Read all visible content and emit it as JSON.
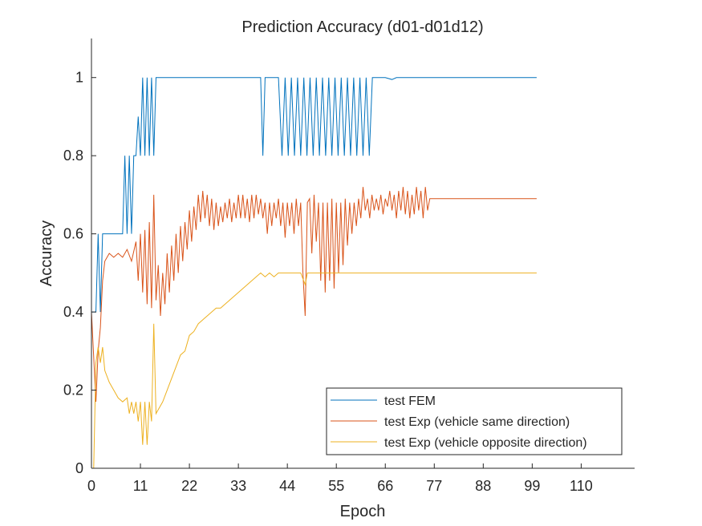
{
  "chart_data": {
    "type": "line",
    "title": "Prediction Accuracy (d01-d01d12)",
    "xlabel": "Epoch",
    "ylabel": "Accuracy",
    "xlim": [
      0,
      122
    ],
    "ylim": [
      0,
      1.1
    ],
    "xticks": [
      0,
      11,
      22,
      33,
      44,
      55,
      66,
      77,
      88,
      99,
      110
    ],
    "xtick_labels": [
      "0",
      "11",
      "22",
      "33",
      "44",
      "55",
      "66",
      "77",
      "88",
      "99",
      "110"
    ],
    "yticks": [
      0,
      0.2,
      0.4,
      0.6,
      0.8,
      1
    ],
    "ytick_labels": [
      "0",
      "0.2",
      "0.4",
      "0.6",
      "0.8",
      "1"
    ],
    "grid": false,
    "legend_position": "bottom-right",
    "series": [
      {
        "name": "test FEM",
        "color": "#0072BD",
        "points": [
          [
            0,
            0.4
          ],
          [
            1,
            0.4
          ],
          [
            1.5,
            0.6
          ],
          [
            2,
            0.4
          ],
          [
            2.5,
            0.6
          ],
          [
            3,
            0.6
          ],
          [
            4,
            0.6
          ],
          [
            5,
            0.6
          ],
          [
            6,
            0.6
          ],
          [
            7,
            0.6
          ],
          [
            7.5,
            0.8
          ],
          [
            8,
            0.6
          ],
          [
            8.5,
            0.8
          ],
          [
            9,
            0.6
          ],
          [
            9.5,
            0.8
          ],
          [
            10,
            0.8
          ],
          [
            10.5,
            0.9
          ],
          [
            11,
            0.8
          ],
          [
            11.5,
            1
          ],
          [
            12,
            0.8
          ],
          [
            12.5,
            1
          ],
          [
            13,
            0.8
          ],
          [
            13.5,
            1
          ],
          [
            14,
            0.8
          ],
          [
            14.5,
            1
          ],
          [
            15,
            1
          ],
          [
            20,
            1
          ],
          [
            30,
            1
          ],
          [
            38,
            1
          ],
          [
            38.5,
            0.8
          ],
          [
            39,
            1
          ],
          [
            42,
            1
          ],
          [
            42.8,
            0.8
          ],
          [
            43.5,
            1
          ],
          [
            44.2,
            0.8
          ],
          [
            44.9,
            1
          ],
          [
            45.6,
            0.8
          ],
          [
            46.3,
            1
          ],
          [
            47,
            0.8
          ],
          [
            47.7,
            1
          ],
          [
            48.4,
            0.8
          ],
          [
            49.1,
            1
          ],
          [
            49.8,
            0.8
          ],
          [
            50.5,
            1
          ],
          [
            51.2,
            0.8
          ],
          [
            51.9,
            1
          ],
          [
            52.6,
            0.8
          ],
          [
            53.3,
            1
          ],
          [
            54,
            0.8
          ],
          [
            54.7,
            1
          ],
          [
            55.4,
            0.8
          ],
          [
            56.1,
            1
          ],
          [
            56.8,
            0.8
          ],
          [
            57.5,
            1
          ],
          [
            58.2,
            0.8
          ],
          [
            58.9,
            1
          ],
          [
            59.6,
            0.8
          ],
          [
            60.3,
            1
          ],
          [
            61,
            0.8
          ],
          [
            61.7,
            1
          ],
          [
            62.4,
            0.8
          ],
          [
            63.1,
            1
          ],
          [
            66,
            1
          ],
          [
            67.5,
            0.995
          ],
          [
            68.5,
            1
          ],
          [
            80,
            1
          ],
          [
            100,
            1
          ]
        ]
      },
      {
        "name": "test Exp (vehicle same direction)",
        "color": "#D95319",
        "points": [
          [
            0,
            0.4
          ],
          [
            1,
            0.17
          ],
          [
            1.5,
            0.3
          ],
          [
            2,
            0.36
          ],
          [
            2.5,
            0.48
          ],
          [
            3,
            0.53
          ],
          [
            4,
            0.55
          ],
          [
            5,
            0.54
          ],
          [
            6,
            0.55
          ],
          [
            7,
            0.54
          ],
          [
            8,
            0.56
          ],
          [
            9,
            0.53
          ],
          [
            10,
            0.58
          ],
          [
            10.5,
            0.48
          ],
          [
            11,
            0.6
          ],
          [
            11.5,
            0.45
          ],
          [
            12,
            0.61
          ],
          [
            12.5,
            0.42
          ],
          [
            13,
            0.63
          ],
          [
            13.5,
            0.41
          ],
          [
            14,
            0.7
          ],
          [
            14.5,
            0.43
          ],
          [
            15,
            0.52
          ],
          [
            15.5,
            0.39
          ],
          [
            16,
            0.5
          ],
          [
            16.5,
            0.42
          ],
          [
            17,
            0.55
          ],
          [
            17.5,
            0.45
          ],
          [
            18,
            0.57
          ],
          [
            18.5,
            0.48
          ],
          [
            19,
            0.6
          ],
          [
            19.5,
            0.5
          ],
          [
            20,
            0.62
          ],
          [
            20.5,
            0.53
          ],
          [
            21,
            0.63
          ],
          [
            21.5,
            0.56
          ],
          [
            22,
            0.66
          ],
          [
            22.5,
            0.58
          ],
          [
            23,
            0.67
          ],
          [
            23.5,
            0.61
          ],
          [
            24,
            0.7
          ],
          [
            24.5,
            0.63
          ],
          [
            25,
            0.71
          ],
          [
            25.5,
            0.64
          ],
          [
            26,
            0.7
          ],
          [
            26.5,
            0.62
          ],
          [
            27,
            0.69
          ],
          [
            27.5,
            0.61
          ],
          [
            28,
            0.68
          ],
          [
            28.5,
            0.62
          ],
          [
            29,
            0.67
          ],
          [
            29.5,
            0.63
          ],
          [
            30,
            0.68
          ],
          [
            30.5,
            0.64
          ],
          [
            31,
            0.69
          ],
          [
            31.5,
            0.63
          ],
          [
            32,
            0.68
          ],
          [
            32.5,
            0.64
          ],
          [
            33,
            0.7
          ],
          [
            33.5,
            0.64
          ],
          [
            34,
            0.7
          ],
          [
            34.5,
            0.64
          ],
          [
            35,
            0.69
          ],
          [
            35.5,
            0.63
          ],
          [
            36,
            0.7
          ],
          [
            36.5,
            0.64
          ],
          [
            37,
            0.7
          ],
          [
            37.5,
            0.65
          ],
          [
            38,
            0.69
          ],
          [
            38.5,
            0.64
          ],
          [
            39,
            0.68
          ],
          [
            39.5,
            0.6
          ],
          [
            40,
            0.68
          ],
          [
            40.5,
            0.62
          ],
          [
            41,
            0.68
          ],
          [
            41.5,
            0.64
          ],
          [
            42,
            0.69
          ],
          [
            42.5,
            0.62
          ],
          [
            43,
            0.68
          ],
          [
            43.5,
            0.59
          ],
          [
            44,
            0.68
          ],
          [
            44.5,
            0.62
          ],
          [
            45,
            0.68
          ],
          [
            45.5,
            0.6
          ],
          [
            46,
            0.69
          ],
          [
            46.5,
            0.62
          ],
          [
            47,
            0.68
          ],
          [
            47.5,
            0.5
          ],
          [
            48,
            0.39
          ],
          [
            48.5,
            0.68
          ],
          [
            49,
            0.69
          ],
          [
            49.5,
            0.55
          ],
          [
            50,
            0.7
          ],
          [
            50.5,
            0.58
          ],
          [
            51,
            0.68
          ],
          [
            51.5,
            0.48
          ],
          [
            52,
            0.68
          ],
          [
            52.5,
            0.45
          ],
          [
            53,
            0.68
          ],
          [
            53.5,
            0.48
          ],
          [
            54,
            0.69
          ],
          [
            54.5,
            0.46
          ],
          [
            55,
            0.68
          ],
          [
            55.5,
            0.5
          ],
          [
            56,
            0.68
          ],
          [
            56.5,
            0.52
          ],
          [
            57,
            0.69
          ],
          [
            57.5,
            0.57
          ],
          [
            58,
            0.68
          ],
          [
            58.5,
            0.6
          ],
          [
            59,
            0.68
          ],
          [
            59.5,
            0.62
          ],
          [
            60,
            0.69
          ],
          [
            60.5,
            0.64
          ],
          [
            61,
            0.72
          ],
          [
            61.5,
            0.66
          ],
          [
            62,
            0.69
          ],
          [
            62.5,
            0.64
          ],
          [
            63,
            0.7
          ],
          [
            63.5,
            0.66
          ],
          [
            64,
            0.69
          ],
          [
            64.5,
            0.66
          ],
          [
            65,
            0.7
          ],
          [
            65.5,
            0.65
          ],
          [
            66,
            0.69
          ],
          [
            66.5,
            0.67
          ],
          [
            67,
            0.71
          ],
          [
            67.5,
            0.66
          ],
          [
            68,
            0.7
          ],
          [
            68.5,
            0.64
          ],
          [
            69,
            0.71
          ],
          [
            69.5,
            0.66
          ],
          [
            70,
            0.72
          ],
          [
            70.5,
            0.65
          ],
          [
            71,
            0.71
          ],
          [
            71.5,
            0.64
          ],
          [
            72,
            0.7
          ],
          [
            72.5,
            0.65
          ],
          [
            73,
            0.72
          ],
          [
            73.5,
            0.66
          ],
          [
            74,
            0.71
          ],
          [
            74.5,
            0.64
          ],
          [
            75,
            0.72
          ],
          [
            75.5,
            0.66
          ],
          [
            76,
            0.69
          ],
          [
            80,
            0.69
          ],
          [
            100,
            0.69
          ]
        ]
      },
      {
        "name": "test Exp (vehicle opposite direction)",
        "color": "#EDB120",
        "points": [
          [
            0,
            0
          ],
          [
            0.5,
            0
          ],
          [
            1,
            0.27
          ],
          [
            1.5,
            0.31
          ],
          [
            2,
            0.27
          ],
          [
            2.5,
            0.31
          ],
          [
            3,
            0.25
          ],
          [
            4,
            0.22
          ],
          [
            5,
            0.2
          ],
          [
            6,
            0.18
          ],
          [
            7,
            0.17
          ],
          [
            8,
            0.18
          ],
          [
            8.5,
            0.14
          ],
          [
            9,
            0.17
          ],
          [
            9.5,
            0.14
          ],
          [
            10,
            0.17
          ],
          [
            10.5,
            0.12
          ],
          [
            11,
            0.17
          ],
          [
            11.5,
            0.06
          ],
          [
            12,
            0.17
          ],
          [
            12.5,
            0.06
          ],
          [
            13,
            0.17
          ],
          [
            13.5,
            0.12
          ],
          [
            14,
            0.37
          ],
          [
            14.5,
            0.14
          ],
          [
            15,
            0.15
          ],
          [
            16,
            0.17
          ],
          [
            17,
            0.2
          ],
          [
            18,
            0.23
          ],
          [
            19,
            0.26
          ],
          [
            20,
            0.29
          ],
          [
            21,
            0.3
          ],
          [
            22,
            0.34
          ],
          [
            23,
            0.35
          ],
          [
            24,
            0.37
          ],
          [
            25,
            0.38
          ],
          [
            26,
            0.39
          ],
          [
            27,
            0.4
          ],
          [
            28,
            0.41
          ],
          [
            29,
            0.41
          ],
          [
            30,
            0.42
          ],
          [
            31,
            0.43
          ],
          [
            32,
            0.44
          ],
          [
            33,
            0.45
          ],
          [
            34,
            0.46
          ],
          [
            35,
            0.47
          ],
          [
            36,
            0.48
          ],
          [
            37,
            0.49
          ],
          [
            38,
            0.5
          ],
          [
            39,
            0.49
          ],
          [
            40,
            0.5
          ],
          [
            41,
            0.49
          ],
          [
            42,
            0.5
          ],
          [
            43,
            0.5
          ],
          [
            47,
            0.5
          ],
          [
            48,
            0.47
          ],
          [
            48.5,
            0.5
          ],
          [
            60,
            0.5
          ],
          [
            80,
            0.5
          ],
          [
            100,
            0.5
          ]
        ]
      }
    ]
  }
}
